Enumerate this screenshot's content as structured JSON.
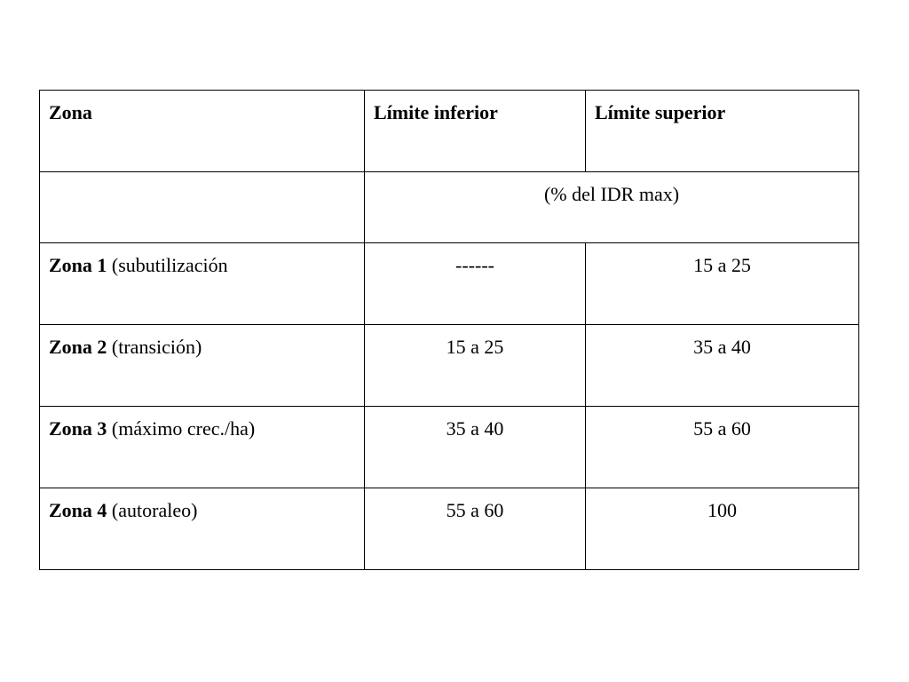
{
  "table": {
    "headers": [
      "Zona",
      "Límite inferior",
      "Límite superior"
    ],
    "unit_row": "(% del IDR max)",
    "rows": [
      {
        "zone": "Zona 1",
        "desc": " (subutilización",
        "lower": "------",
        "upper": "15 a 25"
      },
      {
        "zone": "Zona 2",
        "desc": " (transición)",
        "lower": "15 a 25",
        "upper": "35 a 40"
      },
      {
        "zone": "Zona 3",
        "desc": " (máximo crec./ha)",
        "lower": "35 a 40",
        "upper": "55 a 60"
      },
      {
        "zone": "Zona 4",
        "desc": " (autoraleo)",
        "lower": "55 a 60",
        "upper": "100"
      }
    ]
  }
}
